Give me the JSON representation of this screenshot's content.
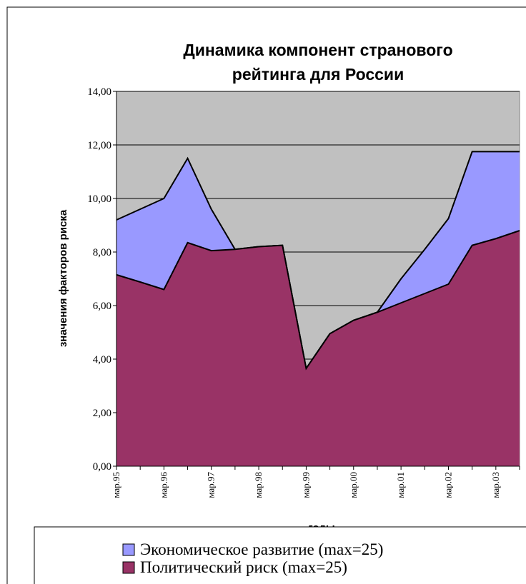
{
  "chart_data": {
    "type": "area",
    "title": "Динамика компонент странового рейтинга для России",
    "x_label": "годы",
    "y_label": "значения факторов риска",
    "categories": [
      "мар.95",
      null,
      "мар.96",
      null,
      "мар.97",
      null,
      "мар.98",
      null,
      "мар.99",
      null,
      "мар.00",
      null,
      "мар.01",
      null,
      "мар.02",
      null,
      "мар.03",
      null
    ],
    "series": [
      {
        "name": "Экономическое развитие (max=25)",
        "color": "#9999ff",
        "values": [
          9.2,
          9.6,
          10.0,
          11.5,
          9.6,
          8.1,
          8.2,
          8.25,
          3.65,
          4.95,
          5.45,
          5.75,
          7.0,
          8.1,
          9.25,
          11.75,
          11.75,
          11.75
        ]
      },
      {
        "name": "Политический риск (max=25)",
        "color": "#993366",
        "values": [
          7.15,
          6.88,
          6.6,
          8.35,
          8.05,
          8.1,
          8.2,
          8.25,
          3.65,
          4.95,
          5.45,
          5.75,
          6.1,
          6.45,
          6.8,
          8.25,
          8.5,
          8.8
        ]
      }
    ],
    "ylim": [
      0,
      14
    ],
    "yticks": [
      {
        "value": 0,
        "label": "0,00"
      },
      {
        "value": 2,
        "label": "2,00"
      },
      {
        "value": 4,
        "label": "4,00"
      },
      {
        "value": 6,
        "label": "6,00"
      },
      {
        "value": 8,
        "label": "8,00"
      },
      {
        "value": 10,
        "label": "10,00"
      },
      {
        "value": 12,
        "label": "12,00"
      },
      {
        "value": 14,
        "label": "14,00"
      }
    ],
    "grid": true,
    "background": "#c0c0c0"
  }
}
